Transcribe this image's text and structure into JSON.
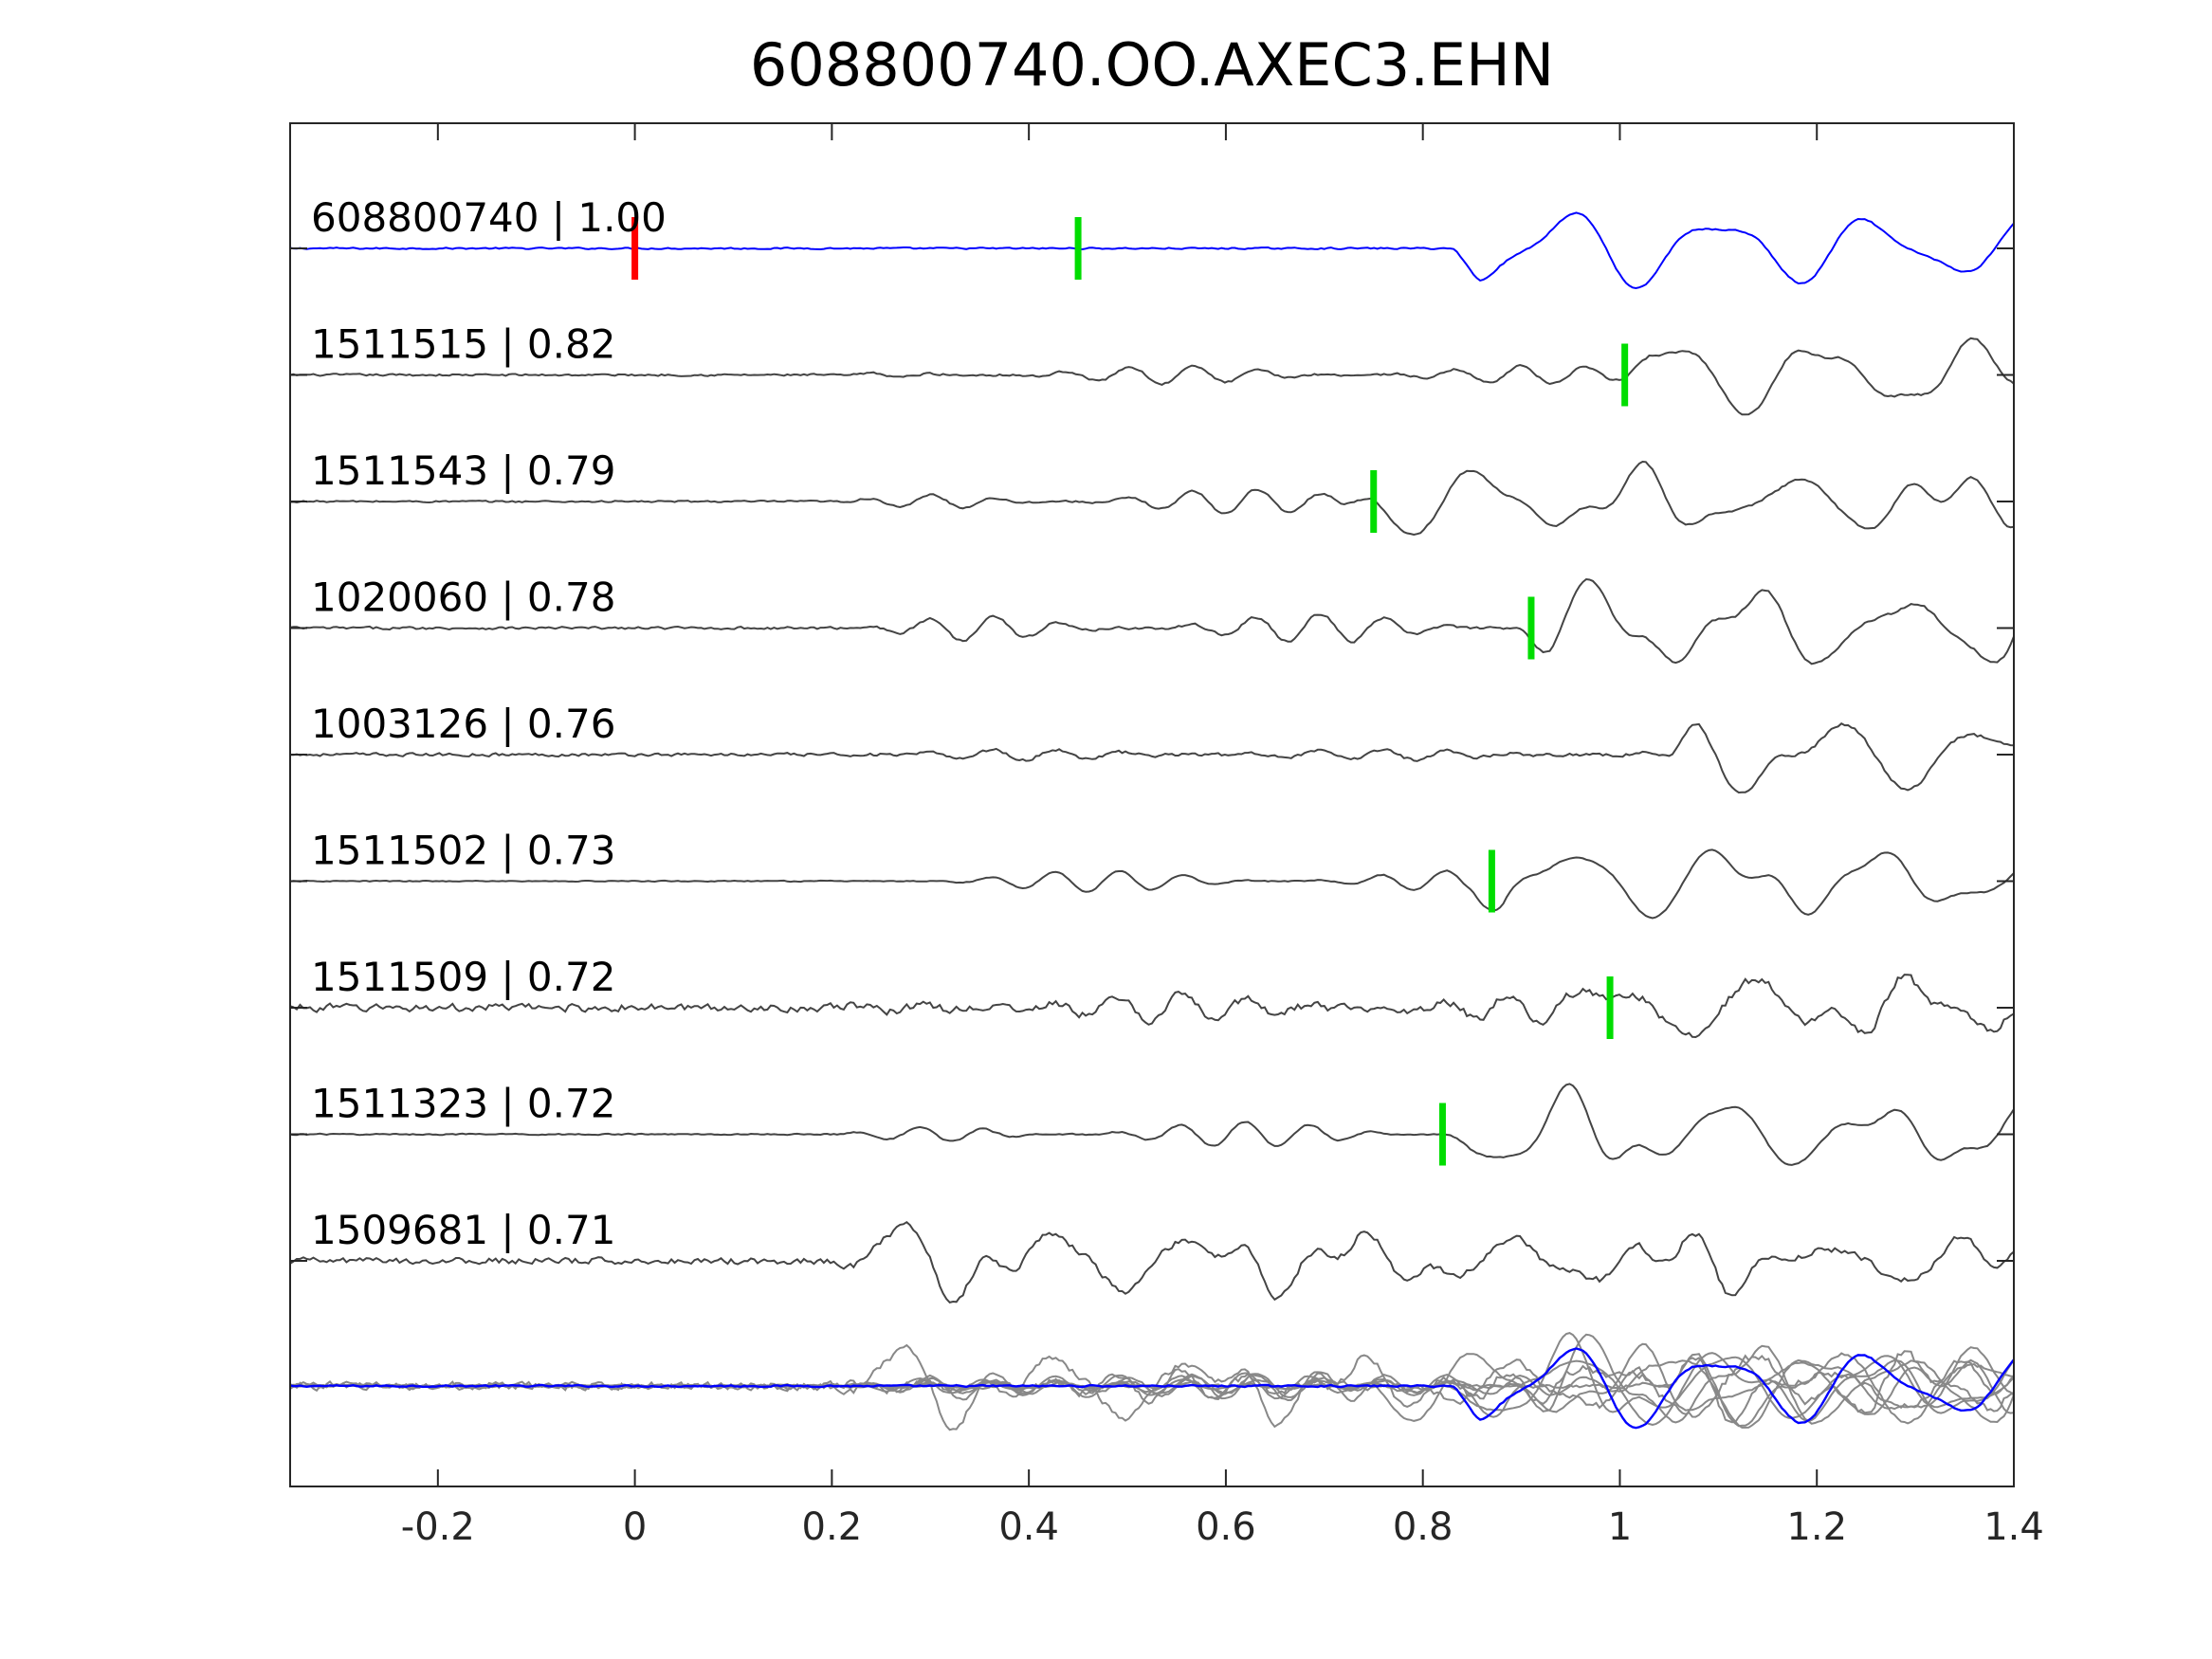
{
  "chart_data": {
    "type": "line",
    "title": "608800740.OO.AXEC3.EHN",
    "xlabel": "",
    "ylabel": "",
    "xlim": [
      -0.35,
      1.4
    ],
    "x_ticks": [
      {
        "value": -0.2,
        "label": "-0.2"
      },
      {
        "value": 0,
        "label": "0"
      },
      {
        "value": 0.2,
        "label": "0.2"
      },
      {
        "value": 0.4,
        "label": "0.4"
      },
      {
        "value": 0.6,
        "label": "0.6"
      },
      {
        "value": 0.8,
        "label": "0.8"
      },
      {
        "value": 1,
        "label": "1"
      },
      {
        "value": 1.2,
        "label": "1.2"
      },
      {
        "value": 1.4,
        "label": "1.4"
      }
    ],
    "grid": false,
    "colors": {
      "template": "#0000ff",
      "trace": "#444444",
      "stack": "#888888",
      "origin_pick": "#ff0000",
      "arrival_pick": "#00dd00"
    },
    "traces": [
      {
        "label": "608800740 | 1.00",
        "color": "#0000ff",
        "picks_x": [
          0.45
        ],
        "origin_pick_x": 0,
        "arrival": 0.83,
        "noise": 0.06,
        "wave": 1.0,
        "pre_noise": 0
      },
      {
        "label": "1511515 | 0.82",
        "color": "#444444",
        "picks_x": [
          1.005
        ],
        "arrival": 1.0,
        "noise": 0.08,
        "wave": 0.9,
        "pre_noise": 0.25
      },
      {
        "label": "1511543 | 0.79",
        "color": "#444444",
        "picks_x": [
          0.75
        ],
        "arrival": 0.72,
        "noise": 0.07,
        "wave": 0.8,
        "pre_noise": 0.35
      },
      {
        "label": "1020060 | 0.78",
        "color": "#444444",
        "picks_x": [
          0.91
        ],
        "arrival": 0.9,
        "noise": 0.1,
        "wave": 1.0,
        "pre_noise": 0.4
      },
      {
        "label": "1003126 | 0.76",
        "color": "#444444",
        "picks_x": [],
        "arrival": 1.05,
        "noise": 0.12,
        "wave": 0.9,
        "pre_noise": 0.15
      },
      {
        "label": "1511502 | 0.73",
        "color": "#444444",
        "picks_x": [
          0.87
        ],
        "arrival": 0.85,
        "noise": 0.04,
        "wave": 0.9,
        "pre_noise": 0.3
      },
      {
        "label": "1511509 | 0.72",
        "color": "#444444",
        "picks_x": [
          0.99
        ],
        "arrival": 0.95,
        "noise": 0.3,
        "wave": 0.7,
        "pre_noise": 0.4
      },
      {
        "label": "1511323 | 0.72",
        "color": "#444444",
        "picks_x": [
          0.82
        ],
        "arrival": 0.82,
        "noise": 0.05,
        "wave": 0.9,
        "pre_noise": 0.35
      },
      {
        "label": "1509681 | 0.71",
        "color": "#444444",
        "picks_x": [],
        "arrival": 0.2,
        "noise": 0.25,
        "wave": 0.8,
        "pre_noise": 0.5
      }
    ]
  }
}
